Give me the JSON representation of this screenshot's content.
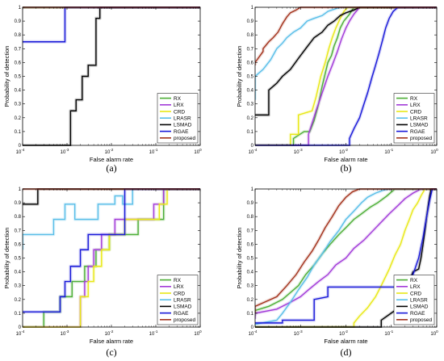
{
  "chart_data": [
    {
      "type": "line",
      "caption": "(a)",
      "xlabel": "False alarm rate",
      "ylabel": "Probability of detection",
      "xscale": "log",
      "xlim": [
        0.0001,
        1
      ],
      "ylim": [
        0,
        1
      ],
      "x_ticks": [
        "10⁻⁴",
        "10⁻³",
        "10⁻²",
        "10⁻¹",
        "10⁰"
      ],
      "y_ticks": [
        "0",
        "0.1",
        "0.2",
        "0.3",
        "0.4",
        "0.5",
        "0.6",
        "0.7",
        "0.8",
        "0.9",
        "1"
      ],
      "legend_position": "bottom-right",
      "series": [
        {
          "name": "RX",
          "color": "#4cae36",
          "x": [
            0.0001,
            1
          ],
          "y": [
            1,
            1
          ]
        },
        {
          "name": "LRX",
          "color": "#a23bd8",
          "x": [
            0.0001,
            1
          ],
          "y": [
            1,
            1
          ]
        },
        {
          "name": "CRD",
          "color": "#e8e815",
          "x": [
            0.0001,
            1
          ],
          "y": [
            1,
            1
          ]
        },
        {
          "name": "LRASR",
          "color": "#58bee8",
          "x": [
            0.0001,
            1
          ],
          "y": [
            1,
            1
          ]
        },
        {
          "name": "LSMAD",
          "color": "#000000",
          "x": [
            0.0001,
            0.0012,
            0.0012,
            0.0016,
            0.0016,
            0.0022,
            0.0022,
            0.003,
            0.003,
            0.0045,
            0.0045,
            0.0055,
            0.0055,
            1
          ],
          "y": [
            0,
            0,
            0.25,
            0.25,
            0.33,
            0.33,
            0.5,
            0.5,
            0.58,
            0.58,
            0.92,
            0.92,
            1,
            1
          ]
        },
        {
          "name": "RGAE",
          "color": "#1818d8",
          "x": [
            0.0001,
            0.0009,
            0.0009,
            1
          ],
          "y": [
            0.75,
            0.75,
            1,
            1
          ]
        },
        {
          "name": "proposed",
          "color": "#a3321c",
          "x": [
            0.0001,
            1
          ],
          "y": [
            1,
            1
          ]
        }
      ]
    },
    {
      "type": "line",
      "caption": "(b)",
      "xlabel": "False alarm rate",
      "ylabel": "Probability of detection",
      "xscale": "log",
      "xlim": [
        0.0001,
        1
      ],
      "ylim": [
        0,
        1
      ],
      "x_ticks": [
        "10⁻⁴",
        "10⁻³",
        "10⁻²",
        "10⁻¹",
        "10⁰"
      ],
      "y_ticks": [
        "0",
        "0.1",
        "0.2",
        "0.3",
        "0.4",
        "0.5",
        "0.6",
        "0.7",
        "0.8",
        "0.9",
        "1"
      ],
      "legend_position": "bottom-right",
      "series": [
        {
          "name": "RX",
          "color": "#4cae36",
          "x": [
            0.0001,
            0.0007,
            0.0007,
            0.0012,
            0.0016,
            0.002,
            0.0025,
            0.003,
            0.0035,
            0.004,
            0.0048,
            0.0055,
            0.0065,
            0.0075,
            0.009,
            0.012,
            0.015,
            1
          ],
          "y": [
            0,
            0,
            0.05,
            0.1,
            0.1,
            0.18,
            0.3,
            0.43,
            0.52,
            0.6,
            0.65,
            0.72,
            0.78,
            0.85,
            0.9,
            0.95,
            1,
            1
          ]
        },
        {
          "name": "LRX",
          "color": "#a23bd8",
          "x": [
            0.0001,
            0.0015,
            0.0015,
            0.0022,
            0.003,
            0.004,
            0.005,
            0.0065,
            0.008,
            0.01,
            0.012,
            0.015,
            0.02,
            1
          ],
          "y": [
            0,
            0,
            0.08,
            0.25,
            0.38,
            0.5,
            0.58,
            0.68,
            0.77,
            0.85,
            0.9,
            0.95,
            1,
            1
          ]
        },
        {
          "name": "CRD",
          "color": "#e8e815",
          "x": [
            0.0001,
            0.0006,
            0.0006,
            0.0009,
            0.0009,
            0.0018,
            0.0022,
            0.0028,
            0.0035,
            0.0042,
            0.005,
            0.006,
            0.0075,
            0.009,
            0.011,
            1
          ],
          "y": [
            0,
            0,
            0.08,
            0.08,
            0.22,
            0.25,
            0.35,
            0.5,
            0.6,
            0.7,
            0.78,
            0.85,
            0.92,
            0.97,
            1,
            1
          ]
        },
        {
          "name": "LRASR",
          "color": "#58bee8",
          "x": [
            0.0001,
            0.0001,
            0.00015,
            0.00022,
            0.0003,
            0.0004,
            0.0005,
            0.0007,
            0.001,
            0.0014,
            0.002,
            0.003,
            0.004,
            0.006,
            0.008,
            1
          ],
          "y": [
            0.33,
            0.5,
            0.55,
            0.62,
            0.7,
            0.74,
            0.78,
            0.82,
            0.85,
            0.9,
            0.92,
            0.94,
            0.97,
            0.99,
            1,
            1
          ]
        },
        {
          "name": "LSMAD",
          "color": "#000000",
          "x": [
            0.0001,
            0.0002,
            0.0002,
            0.0003,
            0.0004,
            0.0006,
            0.0009,
            0.0013,
            0.002,
            0.003,
            0.004,
            0.0055,
            0.0075,
            0.01,
            0.015,
            0.02,
            1
          ],
          "y": [
            0.22,
            0.22,
            0.4,
            0.45,
            0.5,
            0.55,
            0.63,
            0.7,
            0.78,
            0.82,
            0.87,
            0.9,
            0.94,
            0.96,
            0.98,
            1,
            1
          ]
        },
        {
          "name": "RGAE",
          "color": "#1818d8",
          "x": [
            0.0001,
            0.012,
            0.012,
            0.015,
            0.02,
            0.025,
            0.03,
            0.038,
            0.045,
            0.055,
            0.065,
            0.075,
            0.09,
            0.11,
            0.14,
            1
          ],
          "y": [
            0,
            0,
            0.05,
            0.12,
            0.2,
            0.3,
            0.38,
            0.5,
            0.58,
            0.68,
            0.77,
            0.85,
            0.92,
            0.97,
            1,
            1
          ]
        },
        {
          "name": "proposed",
          "color": "#a3321c",
          "x": [
            0.0001,
            0.0001,
            0.00015,
            0.00015,
            0.0002,
            0.00025,
            0.00032,
            0.0004,
            0.0005,
            0.0006,
            0.0008,
            0.001,
            1
          ],
          "y": [
            0.58,
            0.6,
            0.68,
            0.7,
            0.75,
            0.78,
            0.82,
            0.88,
            0.93,
            0.96,
            0.98,
            1,
            1
          ]
        }
      ]
    },
    {
      "type": "line",
      "caption": "(c)",
      "xlabel": "False alarm rate",
      "ylabel": "Probability of detection",
      "xscale": "log",
      "xlim": [
        0.0001,
        1
      ],
      "ylim": [
        0,
        1
      ],
      "x_ticks": [
        "10⁻⁴",
        "10⁻³",
        "10⁻²",
        "10⁻¹",
        "10⁰"
      ],
      "y_ticks": [
        "0",
        "0.1",
        "0.2",
        "0.3",
        "0.4",
        "0.5",
        "0.6",
        "0.7",
        "0.8",
        "0.9",
        "1"
      ],
      "legend_position": "bottom-right",
      "series": [
        {
          "name": "RX",
          "color": "#4cae36",
          "x": [
            0.0001,
            0.0003,
            0.0003,
            0.0007,
            0.0007,
            0.0013,
            0.0013,
            0.0025,
            0.0025,
            0.0045,
            0.0045,
            0.009,
            0.009,
            0.04,
            0.04,
            0.15,
            0.15,
            1
          ],
          "y": [
            0,
            0,
            0.11,
            0.11,
            0.22,
            0.22,
            0.33,
            0.33,
            0.44,
            0.44,
            0.56,
            0.56,
            0.67,
            0.67,
            0.78,
            0.78,
            1,
            1
          ]
        },
        {
          "name": "LRX",
          "color": "#a23bd8",
          "x": [
            0.0001,
            0.002,
            0.002,
            0.0025,
            0.0025,
            0.003,
            0.003,
            0.004,
            0.004,
            0.006,
            0.006,
            0.012,
            0.012,
            0.09,
            0.09,
            0.15,
            0.15,
            1
          ],
          "y": [
            0,
            0,
            0.22,
            0.22,
            0.33,
            0.33,
            0.44,
            0.44,
            0.56,
            0.56,
            0.67,
            0.67,
            0.78,
            0.78,
            0.89,
            0.89,
            1,
            1
          ]
        },
        {
          "name": "CRD",
          "color": "#e8e815",
          "x": [
            0.0001,
            0.002,
            0.002,
            0.003,
            0.003,
            0.004,
            0.004,
            0.006,
            0.006,
            0.009,
            0.009,
            0.02,
            0.02,
            0.12,
            0.12,
            0.18,
            0.18,
            1
          ],
          "y": [
            0,
            0,
            0.22,
            0.22,
            0.33,
            0.33,
            0.44,
            0.44,
            0.56,
            0.56,
            0.67,
            0.67,
            0.78,
            0.78,
            0.89,
            0.89,
            1,
            1
          ]
        },
        {
          "name": "LRASR",
          "color": "#58bee8",
          "x": [
            0.0001,
            0.0001,
            0.0005,
            0.0005,
            0.0009,
            0.0009,
            0.0015,
            0.0015,
            0.005,
            0.005,
            0.012,
            0.012,
            0.018,
            0.018,
            0.03,
            0.03,
            1
          ],
          "y": [
            0.56,
            0.67,
            0.67,
            0.78,
            0.78,
            0.89,
            0.89,
            0.78,
            0.78,
            0.89,
            0.89,
            0.95,
            0.95,
            0.89,
            0.89,
            1,
            1
          ]
        },
        {
          "name": "LSMAD",
          "color": "#000000",
          "x": [
            0.0001,
            0.0001,
            0.00022,
            0.00022,
            0.0004,
            0.0004,
            1
          ],
          "y": [
            0.89,
            0.89,
            0.89,
            1,
            1,
            1,
            1
          ]
        },
        {
          "name": "RGAE",
          "color": "#1818d8",
          "x": [
            0.0001,
            0.0001,
            0.0007,
            0.0007,
            0.0009,
            0.0009,
            0.0012,
            0.0012,
            0.002,
            0.002,
            0.003,
            0.003,
            0.02,
            0.02,
            1
          ],
          "y": [
            0.11,
            0.11,
            0.11,
            0.22,
            0.22,
            0.33,
            0.33,
            0.44,
            0.44,
            0.56,
            0.56,
            0.67,
            0.67,
            1,
            1
          ]
        },
        {
          "name": "proposed",
          "color": "#a3321c",
          "x": [
            0.0001,
            1
          ],
          "y": [
            1,
            1
          ]
        }
      ]
    },
    {
      "type": "line",
      "caption": "(d)",
      "xlabel": "False alarm rate",
      "ylabel": "Probability of detection",
      "xscale": "log",
      "xlim": [
        0.0001,
        1
      ],
      "ylim": [
        0,
        1
      ],
      "x_ticks": [
        "10⁻⁴",
        "10⁻³",
        "10⁻²",
        "10⁻¹",
        "10⁰"
      ],
      "y_ticks": [
        "0",
        "0.1",
        "0.2",
        "0.3",
        "0.4",
        "0.5",
        "0.6",
        "0.7",
        "0.8",
        "0.9",
        "1"
      ],
      "legend_position": "bottom-right",
      "series": [
        {
          "name": "RX",
          "color": "#4cae36",
          "x": [
            0.0001,
            0.0001,
            0.0002,
            0.0004,
            0.0006,
            0.0009,
            0.0013,
            0.002,
            0.003,
            0.0045,
            0.007,
            0.01,
            0.015,
            0.022,
            0.035,
            0.05,
            0.08,
            0.12,
            1
          ],
          "y": [
            0.08,
            0.12,
            0.15,
            0.2,
            0.25,
            0.3,
            0.38,
            0.45,
            0.53,
            0.6,
            0.67,
            0.72,
            0.78,
            0.82,
            0.87,
            0.9,
            0.95,
            1,
            1
          ]
        },
        {
          "name": "LRX",
          "color": "#a23bd8",
          "x": [
            0.0001,
            0.0001,
            0.0003,
            0.0006,
            0.001,
            0.0015,
            0.0025,
            0.004,
            0.006,
            0.01,
            0.015,
            0.025,
            0.04,
            0.06,
            0.09,
            0.14,
            0.2,
            0.3,
            0.45,
            1
          ],
          "y": [
            0.06,
            0.1,
            0.13,
            0.18,
            0.22,
            0.27,
            0.33,
            0.38,
            0.45,
            0.5,
            0.57,
            0.63,
            0.7,
            0.76,
            0.82,
            0.88,
            0.93,
            0.97,
            1,
            1
          ]
        },
        {
          "name": "CRD",
          "color": "#e8e815",
          "x": [
            0.0001,
            0.015,
            0.015,
            0.02,
            0.03,
            0.045,
            0.06,
            0.09,
            0.12,
            0.16,
            0.2,
            0.25,
            0.3,
            0.38,
            0.45,
            0.55,
            1
          ],
          "y": [
            0,
            0,
            0.03,
            0.08,
            0.14,
            0.22,
            0.3,
            0.42,
            0.52,
            0.6,
            0.7,
            0.78,
            0.85,
            0.9,
            0.95,
            1,
            1
          ]
        },
        {
          "name": "LRASR",
          "color": "#58bee8",
          "x": [
            0.0001,
            0.0003,
            0.0004,
            0.0006,
            0.0009,
            0.0014,
            0.002,
            0.003,
            0.0045,
            0.007,
            0.01,
            0.015,
            0.022,
            0.03,
            0.045,
            0.065,
            0.09,
            1
          ],
          "y": [
            0.02,
            0.05,
            0.1,
            0.18,
            0.27,
            0.36,
            0.45,
            0.53,
            0.62,
            0.7,
            0.78,
            0.84,
            0.9,
            0.94,
            0.97,
            0.99,
            1,
            1
          ]
        },
        {
          "name": "LSMAD",
          "color": "#000000",
          "x": [
            0.0001,
            0.06,
            0.06,
            0.12,
            0.2,
            0.3,
            0.4,
            0.45,
            0.5,
            0.55,
            0.6,
            0.65,
            0.7,
            0.75,
            1
          ],
          "y": [
            0,
            0,
            0.05,
            0.12,
            0.25,
            0.4,
            0.42,
            0.5,
            0.6,
            0.7,
            0.8,
            0.88,
            0.95,
            1,
            1
          ]
        },
        {
          "name": "RGAE",
          "color": "#1818d8",
          "x": [
            0.0001,
            0.0004,
            0.0004,
            0.002,
            0.002,
            0.004,
            0.004,
            0.2,
            0.2,
            0.3,
            0.4,
            0.5,
            0.6,
            0.7,
            0.8,
            1
          ],
          "y": [
            0.03,
            0.03,
            0.05,
            0.05,
            0.2,
            0.22,
            0.29,
            0.29,
            0.3,
            0.38,
            0.5,
            0.65,
            0.8,
            0.92,
            1,
            1
          ]
        },
        {
          "name": "proposed",
          "color": "#a3321c",
          "x": [
            0.0001,
            0.0001,
            0.0003,
            0.0005,
            0.0008,
            0.0012,
            0.0018,
            0.0025,
            0.0035,
            0.005,
            0.007,
            0.01,
            0.014,
            0.02,
            1
          ],
          "y": [
            0.1,
            0.15,
            0.22,
            0.3,
            0.38,
            0.47,
            0.55,
            0.63,
            0.72,
            0.8,
            0.88,
            0.94,
            0.98,
            1,
            1
          ]
        }
      ]
    }
  ]
}
